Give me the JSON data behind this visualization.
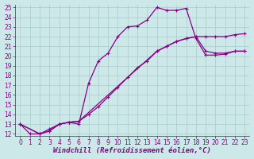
{
  "background_color": "#cce8e8",
  "grid_color": "#aacccc",
  "line_color": "#880088",
  "xlim": [
    -0.5,
    23.5
  ],
  "ylim": [
    11.8,
    25.3
  ],
  "xlabel": "Windchill (Refroidissement éolien,°C)",
  "xticks": [
    0,
    1,
    2,
    3,
    4,
    5,
    6,
    7,
    8,
    9,
    10,
    11,
    12,
    13,
    14,
    15,
    16,
    17,
    18,
    19,
    20,
    21,
    22,
    23
  ],
  "yticks": [
    12,
    13,
    14,
    15,
    16,
    17,
    18,
    19,
    20,
    21,
    22,
    23,
    24,
    25
  ],
  "line1_x": [
    0,
    1,
    2,
    3,
    4,
    5,
    6,
    7,
    8,
    9,
    10,
    11,
    12,
    13,
    14,
    15,
    16,
    17,
    18,
    19,
    20,
    21,
    22,
    23
  ],
  "line1_y": [
    13,
    12,
    12,
    12.5,
    13,
    13.2,
    13.0,
    17.2,
    19.5,
    20.3,
    22.0,
    23.0,
    23.1,
    23.7,
    25.0,
    24.7,
    24.7,
    24.9,
    21.8,
    20.1,
    20.1,
    20.2,
    20.5,
    20.5
  ],
  "line2_x": [
    0,
    2,
    3,
    4,
    5,
    6,
    14,
    15,
    16,
    17,
    18,
    19,
    20,
    21,
    22,
    23
  ],
  "line2_y": [
    13,
    12,
    12.3,
    13.0,
    13.2,
    13.3,
    20.5,
    21.0,
    21.5,
    21.8,
    22.0,
    20.5,
    20.3,
    20.3,
    20.5,
    20.5
  ],
  "line3_x": [
    0,
    2,
    3,
    4,
    5,
    6,
    7,
    8,
    9,
    10,
    11,
    12,
    13,
    14,
    15,
    16,
    17,
    18,
    19,
    20,
    21,
    22,
    23
  ],
  "line3_y": [
    13,
    12,
    12.3,
    13.0,
    13.2,
    13.3,
    14.0,
    14.8,
    15.8,
    16.8,
    17.8,
    18.8,
    19.5,
    20.5,
    21.0,
    21.5,
    21.8,
    22.0,
    22.0,
    22.0,
    22.0,
    22.2,
    22.3
  ],
  "marker": "+",
  "markersize": 3.5,
  "linewidth": 0.9,
  "tick_fontsize": 5.5,
  "xlabel_fontsize": 6.5
}
